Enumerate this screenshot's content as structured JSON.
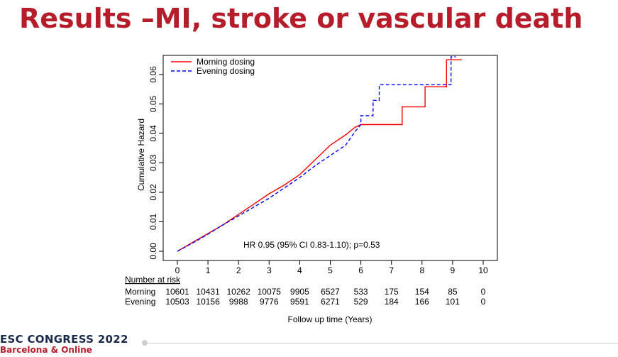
{
  "slide": {
    "title": "Results –MI, stroke or vascular death",
    "footer_line1": "ESC CONGRESS 2022",
    "footer_line2": "Barcelona & Online",
    "title_color": "#b71c2b"
  },
  "chart_data": {
    "type": "line",
    "xlabel": "Follow up time (Years)",
    "ylabel": "Cumulative Hazard",
    "xlim": [
      0,
      10
    ],
    "ylim": [
      0,
      0.066
    ],
    "x_ticks": [
      "0",
      "1",
      "2",
      "3",
      "4",
      "5",
      "6",
      "7",
      "8",
      "9",
      "10"
    ],
    "y_ticks": [
      "0.00",
      "0.01",
      "0.02",
      "0.03",
      "0.04",
      "0.05",
      "0.06"
    ],
    "legend_position": "top-left",
    "annotation": "HR 0.95 (95% CI 0.83-1.10); p=0.53",
    "series": [
      {
        "name": "Morning dosing",
        "color": "#ff0000",
        "style": "solid",
        "points": [
          [
            0,
            0
          ],
          [
            0.5,
            0.003
          ],
          [
            1,
            0.006
          ],
          [
            1.5,
            0.009
          ],
          [
            2,
            0.0125
          ],
          [
            2.5,
            0.016
          ],
          [
            3,
            0.0195
          ],
          [
            3.5,
            0.0225
          ],
          [
            4,
            0.026
          ],
          [
            4.5,
            0.031
          ],
          [
            5,
            0.036
          ],
          [
            5.5,
            0.0395
          ],
          [
            5.8,
            0.042
          ],
          [
            6,
            0.043
          ],
          [
            6.3,
            0.043
          ],
          [
            7.35,
            0.043
          ],
          [
            7.35,
            0.049
          ],
          [
            8.1,
            0.049
          ],
          [
            8.1,
            0.0558
          ],
          [
            8.8,
            0.0558
          ],
          [
            8.8,
            0.065
          ],
          [
            9.3,
            0.065
          ]
        ]
      },
      {
        "name": "Evening dosing",
        "color": "#0000ff",
        "style": "dashed",
        "points": [
          [
            0,
            0
          ],
          [
            0.5,
            0.0028
          ],
          [
            1,
            0.0058
          ],
          [
            1.5,
            0.009
          ],
          [
            2,
            0.012
          ],
          [
            2.5,
            0.015
          ],
          [
            3,
            0.018
          ],
          [
            3.5,
            0.0215
          ],
          [
            4,
            0.025
          ],
          [
            4.5,
            0.029
          ],
          [
            5,
            0.0325
          ],
          [
            5.5,
            0.036
          ],
          [
            5.8,
            0.0405
          ],
          [
            6,
            0.043
          ],
          [
            6,
            0.046
          ],
          [
            6.4,
            0.046
          ],
          [
            6.4,
            0.0512
          ],
          [
            6.6,
            0.0512
          ],
          [
            6.6,
            0.0565
          ],
          [
            8.95,
            0.0565
          ],
          [
            8.95,
            0.066
          ],
          [
            9.1,
            0.066
          ]
        ]
      }
    ],
    "risk_table": {
      "heading": "Number at risk",
      "rows": [
        {
          "label": "Morning",
          "values": [
            "10601",
            "10431",
            "10262",
            "10075",
            "9905",
            "6527",
            "533",
            "175",
            "154",
            "85",
            "0"
          ]
        },
        {
          "label": "Evening",
          "values": [
            "10503",
            "10156",
            "9988",
            "9776",
            "9591",
            "6271",
            "529",
            "184",
            "166",
            "101",
            "0"
          ]
        }
      ]
    }
  }
}
